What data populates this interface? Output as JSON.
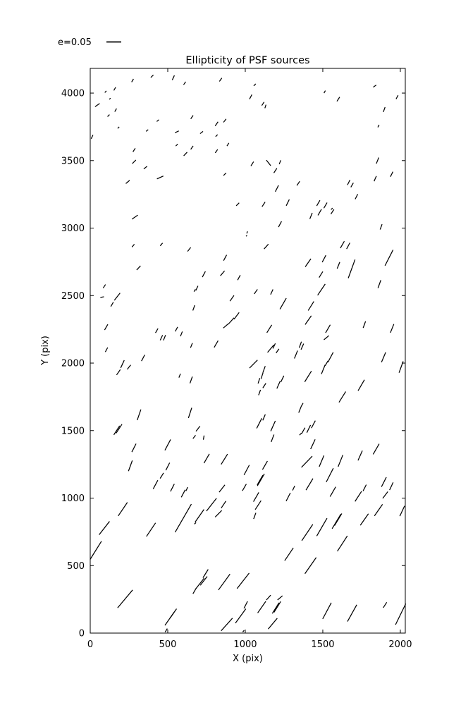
{
  "chart_data": {
    "type": "scatter",
    "style": "quiver-whisker (ellipticity sticks)",
    "title": "Ellipticity of PSF sources",
    "xlabel": "X (pix)",
    "ylabel": "Y (pix)",
    "xlim": [
      0,
      2032
    ],
    "ylim": [
      0,
      4183
    ],
    "xticks": [
      0,
      500,
      1000,
      1500,
      2000
    ],
    "yticks": [
      0,
      500,
      1000,
      1500,
      2000,
      2500,
      3000,
      3500,
      4000
    ],
    "grid": false,
    "legend": {
      "label": "e=0.05",
      "reference_e": 0.05,
      "position": "upper-left-outside"
    },
    "colors": {
      "line": "#000000",
      "background": "#ffffff"
    },
    "points_format": [
      "x_pix",
      "y_pix",
      "ellipticity",
      "angle_deg"
    ],
    "points": [
      [
        273,
        4093,
        0.013,
        60
      ],
      [
        399,
        4125,
        0.013,
        45
      ],
      [
        536,
        4114,
        0.018,
        65
      ],
      [
        609,
        4073,
        0.013,
        55
      ],
      [
        99,
        4010,
        0.008,
        45
      ],
      [
        158,
        4031,
        0.013,
        60
      ],
      [
        127,
        3958,
        0.006,
        45
      ],
      [
        46,
        3911,
        0.02,
        35
      ],
      [
        164,
        3874,
        0.013,
        60
      ],
      [
        118,
        3833,
        0.01,
        45
      ],
      [
        656,
        3822,
        0.015,
        55
      ],
      [
        436,
        3796,
        0.01,
        40
      ],
      [
        182,
        3744,
        0.008,
        45
      ],
      [
        367,
        3723,
        0.01,
        40
      ],
      [
        559,
        3713,
        0.015,
        25
      ],
      [
        12,
        3676,
        0.015,
        65
      ],
      [
        558,
        3615,
        0.01,
        45
      ],
      [
        656,
        3596,
        0.015,
        55
      ],
      [
        614,
        3549,
        0.018,
        47
      ],
      [
        283,
        3578,
        0.015,
        57
      ],
      [
        283,
        3491,
        0.018,
        45
      ],
      [
        356,
        3448,
        0.015,
        38
      ],
      [
        451,
        3375,
        0.025,
        24
      ],
      [
        242,
        3342,
        0.018,
        40
      ],
      [
        841,
        4099,
        0.015,
        55
      ],
      [
        1061,
        4061,
        0.01,
        45
      ],
      [
        1035,
        3972,
        0.018,
        62
      ],
      [
        1114,
        3921,
        0.015,
        57
      ],
      [
        1130,
        3901,
        0.013,
        72
      ],
      [
        868,
        3796,
        0.015,
        52
      ],
      [
        815,
        3772,
        0.018,
        55
      ],
      [
        718,
        3708,
        0.013,
        38
      ],
      [
        815,
        3685,
        0.01,
        45
      ],
      [
        888,
        3619,
        0.013,
        58
      ],
      [
        814,
        3570,
        0.015,
        55
      ],
      [
        1045,
        3476,
        0.018,
        58
      ],
      [
        1150,
        3483,
        0.025,
        128
      ],
      [
        1224,
        3488,
        0.015,
        68
      ],
      [
        1194,
        3426,
        0.02,
        57
      ],
      [
        868,
        3399,
        0.013,
        45
      ],
      [
        1342,
        3331,
        0.018,
        56
      ],
      [
        1204,
        3293,
        0.025,
        63
      ],
      [
        951,
        3176,
        0.015,
        45
      ],
      [
        1118,
        3176,
        0.02,
        57
      ],
      [
        1274,
        3189,
        0.025,
        64
      ],
      [
        1512,
        4009,
        0.01,
        60
      ],
      [
        1835,
        4052,
        0.013,
        35
      ],
      [
        1600,
        3955,
        0.018,
        57
      ],
      [
        1979,
        3970,
        0.015,
        62
      ],
      [
        1896,
        3878,
        0.018,
        70
      ],
      [
        1859,
        3756,
        0.01,
        63
      ],
      [
        1853,
        3500,
        0.023,
        68
      ],
      [
        1944,
        3399,
        0.02,
        63
      ],
      [
        1838,
        3366,
        0.02,
        66
      ],
      [
        1667,
        3338,
        0.02,
        63
      ],
      [
        1689,
        3319,
        0.018,
        60
      ],
      [
        1717,
        3233,
        0.02,
        63
      ],
      [
        1471,
        3185,
        0.023,
        60
      ],
      [
        1517,
        3168,
        0.023,
        60
      ],
      [
        1558,
        3143,
        0.008,
        45
      ],
      [
        288,
        3081,
        0.025,
        35
      ],
      [
        277,
        2870,
        0.013,
        50
      ],
      [
        459,
        2879,
        0.013,
        50
      ],
      [
        638,
        2842,
        0.018,
        52
      ],
      [
        312,
        2705,
        0.02,
        47
      ],
      [
        91,
        2569,
        0.015,
        56
      ],
      [
        77,
        2489,
        0.013,
        10
      ],
      [
        174,
        2492,
        0.033,
        52
      ],
      [
        141,
        2435,
        0.018,
        60
      ],
      [
        674,
        2538,
        0.01,
        60
      ],
      [
        668,
        2409,
        0.02,
        70
      ],
      [
        103,
        2266,
        0.023,
        60
      ],
      [
        429,
        2240,
        0.018,
        60
      ],
      [
        459,
        2188,
        0.02,
        65
      ],
      [
        479,
        2188,
        0.02,
        68
      ],
      [
        556,
        2251,
        0.018,
        62
      ],
      [
        588,
        2216,
        0.018,
        68
      ],
      [
        105,
        2099,
        0.018,
        62
      ],
      [
        653,
        2131,
        0.018,
        68
      ],
      [
        1224,
        3029,
        0.023,
        62
      ],
      [
        1012,
        2968,
        0.008,
        70
      ],
      [
        1008,
        2943,
        0.005,
        45
      ],
      [
        1135,
        2863,
        0.023,
        48
      ],
      [
        870,
        2780,
        0.023,
        62
      ],
      [
        733,
        2658,
        0.023,
        62
      ],
      [
        853,
        2665,
        0.023,
        50
      ],
      [
        959,
        2633,
        0.02,
        62
      ],
      [
        688,
        2555,
        0.018,
        65
      ],
      [
        1068,
        2529,
        0.02,
        55
      ],
      [
        1171,
        2527,
        0.02,
        65
      ],
      [
        914,
        2480,
        0.025,
        55
      ],
      [
        1244,
        2440,
        0.045,
        60
      ],
      [
        944,
        2350,
        0.03,
        53
      ],
      [
        874,
        2275,
        0.023,
        40
      ],
      [
        909,
        2312,
        0.03,
        48
      ],
      [
        1155,
        2254,
        0.033,
        58
      ],
      [
        812,
        2141,
        0.028,
        60
      ],
      [
        1186,
        2127,
        0.02,
        65
      ],
      [
        1208,
        2090,
        0.018,
        55
      ],
      [
        1355,
        2136,
        0.023,
        70
      ],
      [
        1327,
        2063,
        0.03,
        68
      ],
      [
        1424,
        3090,
        0.023,
        68
      ],
      [
        1480,
        3117,
        0.025,
        60
      ],
      [
        1562,
        3121,
        0.02,
        57
      ],
      [
        1876,
        3009,
        0.02,
        70
      ],
      [
        1626,
        2877,
        0.028,
        60
      ],
      [
        1664,
        2868,
        0.025,
        62
      ],
      [
        1405,
        2743,
        0.035,
        55
      ],
      [
        1508,
        2773,
        0.028,
        62
      ],
      [
        1488,
        2656,
        0.025,
        58
      ],
      [
        1601,
        2724,
        0.025,
        68
      ],
      [
        1686,
        2698,
        0.07,
        70
      ],
      [
        1927,
        2780,
        0.063,
        63
      ],
      [
        1865,
        2585,
        0.03,
        70
      ],
      [
        1491,
        2544,
        0.048,
        56
      ],
      [
        1424,
        2423,
        0.038,
        58
      ],
      [
        1406,
        2318,
        0.038,
        55
      ],
      [
        1533,
        2254,
        0.033,
        60
      ],
      [
        1523,
        2188,
        0.023,
        40
      ],
      [
        1768,
        2285,
        0.025,
        70
      ],
      [
        1947,
        2257,
        0.033,
        68
      ],
      [
        1368,
        2122,
        0.023,
        66
      ],
      [
        208,
        1993,
        0.03,
        65
      ],
      [
        250,
        1970,
        0.02,
        52
      ],
      [
        341,
        2038,
        0.025,
        62
      ],
      [
        182,
        1932,
        0.023,
        55
      ],
      [
        577,
        1907,
        0.015,
        68
      ],
      [
        651,
        1875,
        0.025,
        70
      ],
      [
        315,
        1617,
        0.04,
        71
      ],
      [
        644,
        1631,
        0.038,
        72
      ],
      [
        171,
        1502,
        0.038,
        57
      ],
      [
        186,
        1514,
        0.038,
        57
      ],
      [
        282,
        1372,
        0.033,
        63
      ],
      [
        500,
        1394,
        0.043,
        62
      ],
      [
        671,
        1453,
        0.015,
        52
      ],
      [
        259,
        1239,
        0.04,
        70
      ],
      [
        462,
        1166,
        0.023,
        58
      ],
      [
        500,
        1234,
        0.03,
        63
      ],
      [
        421,
        1100,
        0.035,
        62
      ],
      [
        530,
        1077,
        0.03,
        63
      ],
      [
        623,
        1067,
        0.015,
        65
      ],
      [
        1164,
        2107,
        0.035,
        50
      ],
      [
        1053,
        1993,
        0.04,
        45
      ],
      [
        1121,
        1953,
        0.025,
        70
      ],
      [
        1088,
        1869,
        0.02,
        72
      ],
      [
        1108,
        1906,
        0.023,
        72
      ],
      [
        1239,
        1883,
        0.025,
        64
      ],
      [
        1123,
        1833,
        0.02,
        57
      ],
      [
        1092,
        1782,
        0.02,
        70
      ],
      [
        1214,
        1838,
        0.028,
        66
      ],
      [
        1353,
        1657,
        0.025,
        68
      ],
      [
        1090,
        1554,
        0.04,
        63
      ],
      [
        1121,
        1598,
        0.023,
        67
      ],
      [
        1179,
        1534,
        0.04,
        66
      ],
      [
        1176,
        1443,
        0.028,
        69
      ],
      [
        695,
        1514,
        0.023,
        52
      ],
      [
        732,
        1448,
        0.015,
        80
      ],
      [
        1356,
        1474,
        0.01,
        45
      ],
      [
        751,
        1293,
        0.038,
        60
      ],
      [
        865,
        1288,
        0.043,
        58
      ],
      [
        1009,
        1208,
        0.04,
        62
      ],
      [
        1127,
        1243,
        0.035,
        60
      ],
      [
        1095,
        1133,
        0.04,
        60
      ],
      [
        1105,
        1144,
        0.04,
        60
      ],
      [
        1091,
        1118,
        0.03,
        62
      ],
      [
        850,
        1071,
        0.033,
        52
      ],
      [
        994,
        1079,
        0.028,
        60
      ],
      [
        1312,
        1074,
        0.018,
        65
      ],
      [
        1550,
        2043,
        0.04,
        62
      ],
      [
        1892,
        2043,
        0.038,
        67
      ],
      [
        1405,
        1901,
        0.045,
        58
      ],
      [
        1503,
        1953,
        0.035,
        68
      ],
      [
        1524,
        1998,
        0.02,
        60
      ],
      [
        2005,
        1971,
        0.043,
        70
      ],
      [
        1748,
        1836,
        0.045,
        60
      ],
      [
        1626,
        1749,
        0.045,
        58
      ],
      [
        1367,
        1692,
        0.013,
        60
      ],
      [
        1374,
        1499,
        0.025,
        60
      ],
      [
        1409,
        1513,
        0.03,
        64
      ],
      [
        1439,
        1546,
        0.03,
        62
      ],
      [
        1436,
        1399,
        0.038,
        65
      ],
      [
        1397,
        1269,
        0.055,
        46
      ],
      [
        1492,
        1274,
        0.043,
        67
      ],
      [
        1614,
        1276,
        0.045,
        68
      ],
      [
        1741,
        1315,
        0.038,
        66
      ],
      [
        1844,
        1363,
        0.043,
        60
      ],
      [
        1545,
        1170,
        0.055,
        63
      ],
      [
        1414,
        1102,
        0.048,
        59
      ],
      [
        1565,
        1047,
        0.04,
        60
      ],
      [
        1770,
        1076,
        0.025,
        63
      ],
      [
        1894,
        1119,
        0.038,
        63
      ],
      [
        1942,
        1088,
        0.03,
        65
      ],
      [
        210,
        918,
        0.058,
        56
      ],
      [
        91,
        778,
        0.06,
        52
      ],
      [
        36,
        613,
        0.076,
        58
      ],
      [
        392,
        766,
        0.058,
        56
      ],
      [
        600,
        851,
        0.115,
        60
      ],
      [
        600,
        1034,
        0.03,
        62
      ],
      [
        677,
        813,
        0.008,
        40
      ],
      [
        673,
        312,
        0.023,
        60
      ],
      [
        225,
        253,
        0.083,
        50
      ],
      [
        512,
        107,
        0.058,
        55
      ],
      [
        536,
        146,
        0.04,
        55
      ],
      [
        490,
        20,
        0.015,
        58
      ],
      [
        705,
        869,
        0.055,
        55
      ],
      [
        782,
        951,
        0.058,
        52
      ],
      [
        860,
        952,
        0.03,
        56
      ],
      [
        827,
        884,
        0.033,
        45
      ],
      [
        1070,
        1008,
        0.038,
        60
      ],
      [
        1083,
        948,
        0.038,
        57
      ],
      [
        1061,
        868,
        0.023,
        70
      ],
      [
        1277,
        1008,
        0.033,
        63
      ],
      [
        1282,
        584,
        0.055,
        56
      ],
      [
        744,
        441,
        0.035,
        58
      ],
      [
        708,
        368,
        0.048,
        52
      ],
      [
        732,
        387,
        0.04,
        52
      ],
      [
        864,
        378,
        0.07,
        54
      ],
      [
        986,
        387,
        0.07,
        52
      ],
      [
        1106,
        192,
        0.05,
        55
      ],
      [
        1003,
        209,
        0.028,
        63
      ],
      [
        1150,
        263,
        0.023,
        48
      ],
      [
        1196,
        185,
        0.045,
        58
      ],
      [
        1207,
        194,
        0.045,
        58
      ],
      [
        1224,
        261,
        0.023,
        40
      ],
      [
        881,
        64,
        0.06,
        48
      ],
      [
        970,
        127,
        0.063,
        54
      ],
      [
        988,
        14,
        0.008,
        50
      ],
      [
        1177,
        70,
        0.05,
        50
      ],
      [
        1729,
        1013,
        0.043,
        57
      ],
      [
        1903,
        1023,
        0.03,
        53
      ],
      [
        1859,
        911,
        0.05,
        55
      ],
      [
        2012,
        904,
        0.04,
        65
      ],
      [
        1768,
        841,
        0.05,
        55
      ],
      [
        1494,
        785,
        0.073,
        60
      ],
      [
        1588,
        827,
        0.06,
        59
      ],
      [
        1599,
        841,
        0.05,
        59
      ],
      [
        1400,
        745,
        0.07,
        56
      ],
      [
        1626,
        663,
        0.065,
        57
      ],
      [
        1421,
        500,
        0.07,
        55
      ],
      [
        1527,
        165,
        0.065,
        62
      ],
      [
        1689,
        148,
        0.068,
        61
      ],
      [
        2002,
        140,
        0.083,
        64
      ],
      [
        1901,
        208,
        0.023,
        57
      ]
    ]
  }
}
